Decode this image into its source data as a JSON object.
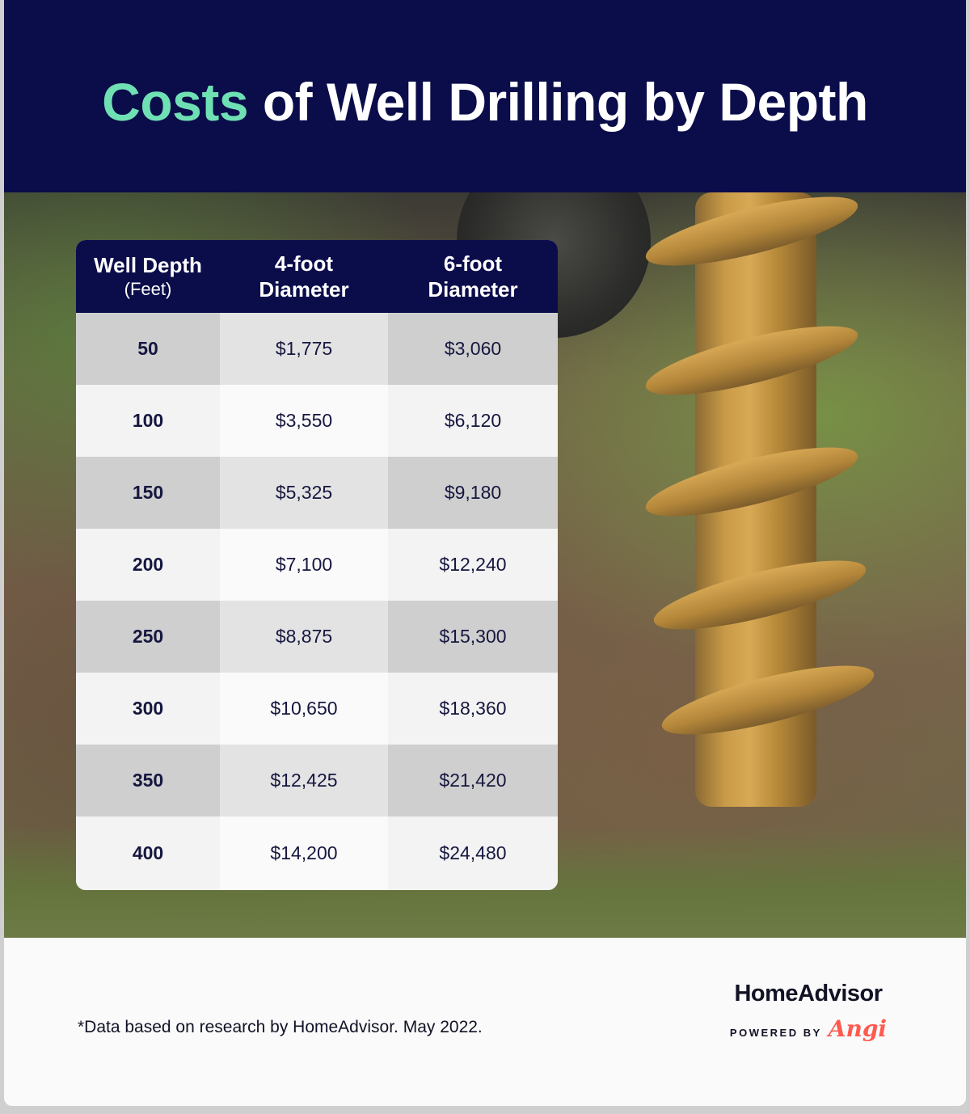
{
  "title": {
    "accent": "Costs",
    "rest": " of Well Drilling by Depth"
  },
  "table": {
    "headers": {
      "depth": "Well Depth",
      "depth_unit": "(Feet)",
      "col1_line1": "4-foot",
      "col1_line2": "Diameter",
      "col2_line1": "6-foot",
      "col2_line2": "Diameter"
    },
    "rows": [
      {
        "depth": "50",
        "four_foot": "$1,775",
        "six_foot": "$3,060"
      },
      {
        "depth": "100",
        "four_foot": "$3,550",
        "six_foot": "$6,120"
      },
      {
        "depth": "150",
        "four_foot": "$5,325",
        "six_foot": "$9,180"
      },
      {
        "depth": "200",
        "four_foot": "$7,100",
        "six_foot": "$12,240"
      },
      {
        "depth": "250",
        "four_foot": "$8,875",
        "six_foot": "$15,300"
      },
      {
        "depth": "300",
        "four_foot": "$10,650",
        "six_foot": "$18,360"
      },
      {
        "depth": "350",
        "four_foot": "$12,425",
        "six_foot": "$21,420"
      },
      {
        "depth": "400",
        "four_foot": "$14,200",
        "six_foot": "$24,480"
      }
    ]
  },
  "footnote": "*Data based on research by HomeAdvisor. May 2022.",
  "brand": {
    "name": "HomeAdvisor",
    "powered_by": "POWERED BY",
    "partner": "Angi"
  },
  "colors": {
    "navy": "#0b0c4a",
    "accent_green": "#6fe0b4",
    "angi_red": "#ff5a4f"
  }
}
